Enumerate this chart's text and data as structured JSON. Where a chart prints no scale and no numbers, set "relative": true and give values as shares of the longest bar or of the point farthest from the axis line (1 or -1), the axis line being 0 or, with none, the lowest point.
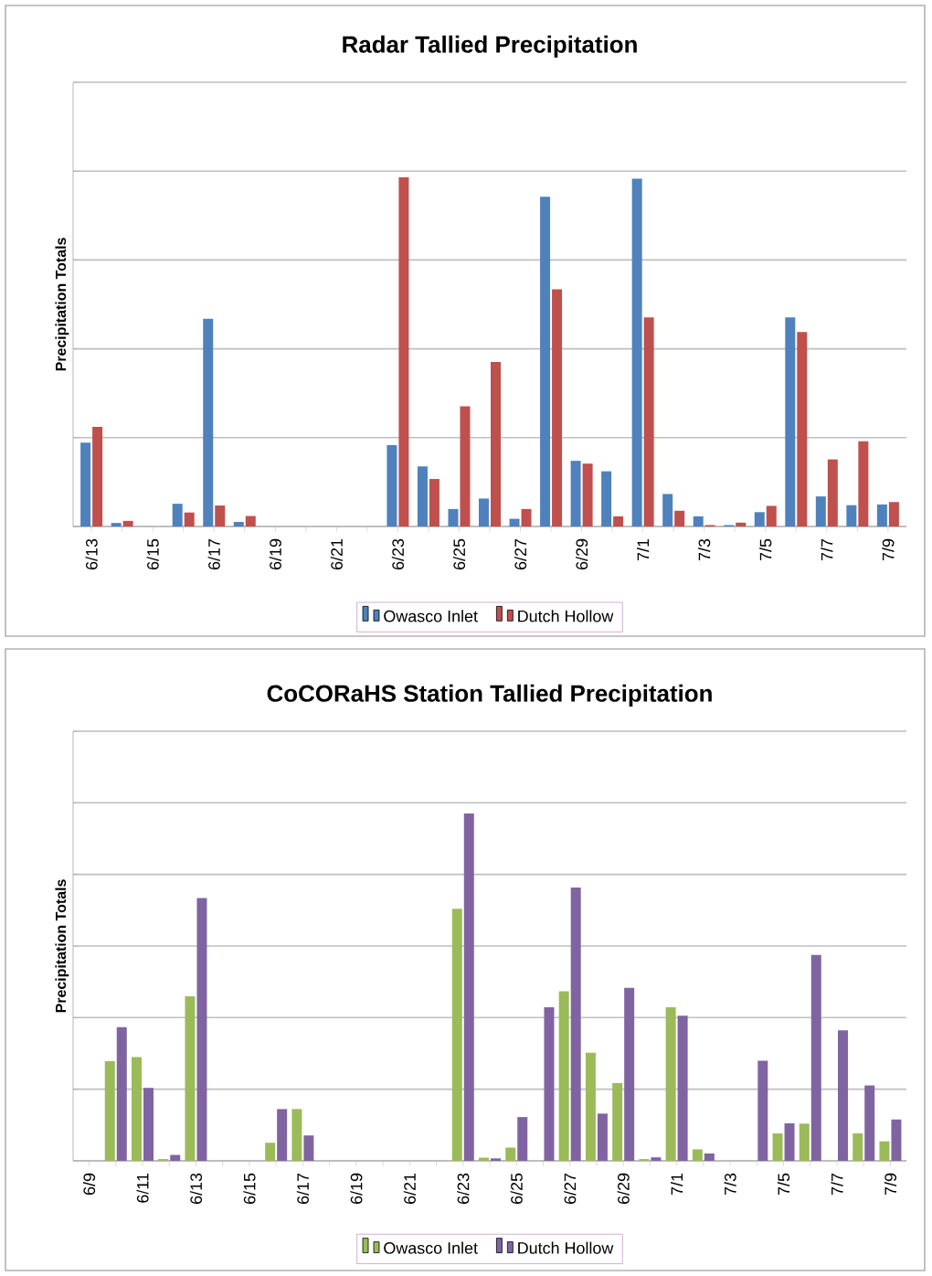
{
  "chart_data": [
    {
      "type": "bar",
      "title": "Radar Tallied Precipitation",
      "ylabel": "Precipitation Totals",
      "relative": true,
      "grid": "y",
      "legend": "bottom",
      "tick_labels": "x",
      "categories": [
        "6/13",
        null,
        "6/15",
        null,
        "6/17",
        null,
        "6/19",
        null,
        "6/21",
        null,
        "6/23",
        null,
        "6/25",
        null,
        "6/27",
        null,
        "6/29",
        null,
        "7/1",
        null,
        "7/3",
        null,
        "7/5",
        null,
        "7/7",
        null,
        "7/9"
      ],
      "series": [
        {
          "name": "Owasco Inlet",
          "color": "#4f81bd",
          "values": [
            0.24,
            0.01,
            0,
            0.065,
            0.595,
            0.013,
            0,
            0,
            0,
            0,
            0.233,
            0.172,
            0.05,
            0.08,
            0.022,
            0.944,
            0.188,
            0.158,
            0.996,
            0.093,
            0.029,
            0.004,
            0.041,
            0.599,
            0.086,
            0.061,
            0.063
          ]
        },
        {
          "name": "Dutch Hollow",
          "color": "#c0504d",
          "values": [
            0.285,
            0.016,
            0,
            0.04,
            0.06,
            0.03,
            0,
            0,
            0,
            0,
            1,
            0.136,
            0.344,
            0.471,
            0.05,
            0.679,
            0.18,
            0.029,
            0.599,
            0.045,
            0.004,
            0.011,
            0.059,
            0.557,
            0.192,
            0.244,
            0.07
          ]
        }
      ]
    },
    {
      "type": "bar",
      "title": "CoCORaHS Station Tallied Precipitation",
      "ylabel": "Precipitation Totals",
      "relative": true,
      "grid": "y",
      "legend": "bottom",
      "tick_labels": "x",
      "categories": [
        "6/9",
        null,
        "6/11",
        null,
        "6/13",
        null,
        "6/15",
        null,
        "6/17",
        null,
        "6/19",
        null,
        "6/21",
        null,
        "6/23",
        null,
        "6/25",
        null,
        "6/27",
        null,
        "6/29",
        null,
        "7/1",
        null,
        "7/3",
        null,
        "7/5",
        null,
        "7/7",
        null,
        "7/9"
      ],
      "series": [
        {
          "name": "Owasco Inlet",
          "color": "#9bbb59",
          "values": [
            0,
            0.287,
            0.299,
            0.005,
            0.474,
            0,
            0,
            0.052,
            0.149,
            0,
            0,
            0,
            0,
            0,
            0.726,
            0.009,
            0.038,
            0,
            0.488,
            0.311,
            0.224,
            0.005,
            0.442,
            0.033,
            0,
            0,
            0.079,
            0.107,
            0,
            0.079,
            0.056
          ]
        },
        {
          "name": "Dutch Hollow",
          "color": "#8064a2",
          "values": [
            0,
            0.385,
            0.21,
            0.017,
            0.757,
            0,
            0,
            0.149,
            0.073,
            0,
            0,
            0,
            0,
            0,
            1,
            0.007,
            0.126,
            0.442,
            0.787,
            0.136,
            0.498,
            0.01,
            0.418,
            0.021,
            0,
            0.288,
            0.108,
            0.593,
            0.376,
            0.217,
            0.119
          ]
        }
      ]
    }
  ]
}
